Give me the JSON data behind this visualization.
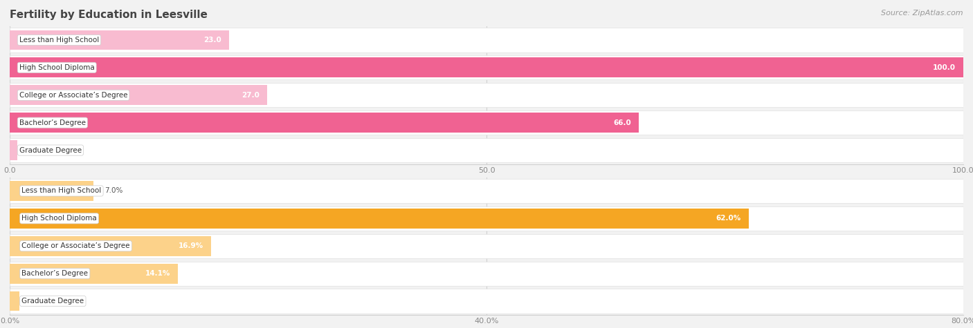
{
  "title": "Fertility by Education in Leesville",
  "source": "Source: ZipAtlas.com",
  "top_chart": {
    "categories": [
      "Less than High School",
      "High School Diploma",
      "College or Associate’s Degree",
      "Bachelor’s Degree",
      "Graduate Degree"
    ],
    "values": [
      23.0,
      100.0,
      27.0,
      66.0,
      0.0
    ],
    "bar_color_strong": "#f06292",
    "bar_color_light": "#f8bbd0",
    "bar_color_tiny": "#f8bbd0",
    "xmax": 100.0,
    "xticks": [
      0.0,
      50.0,
      100.0
    ],
    "xtick_labels": [
      "0.0",
      "50.0",
      "100.0"
    ]
  },
  "bottom_chart": {
    "categories": [
      "Less than High School",
      "High School Diploma",
      "College or Associate’s Degree",
      "Bachelor’s Degree",
      "Graduate Degree"
    ],
    "values": [
      7.0,
      62.0,
      16.9,
      14.1,
      0.0
    ],
    "bar_color_strong": "#f5a623",
    "bar_color_light": "#fcd28a",
    "bar_color_tiny": "#fcd28a",
    "xmax": 80.0,
    "xticks": [
      0.0,
      40.0,
      80.0
    ],
    "xtick_labels": [
      "0.0%",
      "40.0%",
      "80.0%"
    ]
  },
  "bg_color": "#f2f2f2",
  "row_bg_color": "#ffffff",
  "row_border_color": "#e0e0e0",
  "grid_color": "#d0d0d0",
  "title_fontsize": 11,
  "source_fontsize": 8,
  "cat_fontsize": 7.5,
  "val_fontsize": 7.5,
  "tick_fontsize": 8
}
